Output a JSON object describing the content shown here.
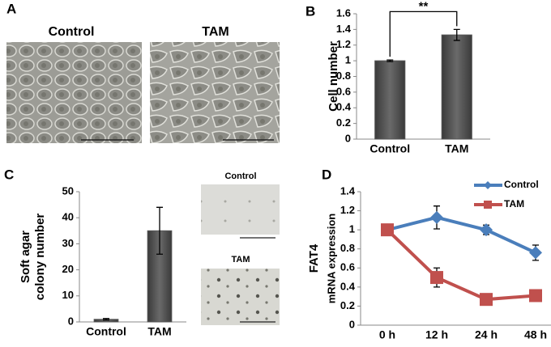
{
  "figure": {
    "panel_labels": [
      "A",
      "B",
      "C",
      "D"
    ],
    "images": [
      {
        "caption": "Control"
      },
      {
        "caption": "TAM"
      },
      {
        "caption": "Control"
      },
      {
        "caption": "TAM"
      }
    ]
  },
  "chart_data": [
    {
      "type": "bar",
      "ylabel": [
        "Cell number"
      ],
      "categories": [
        "Control",
        "TAM"
      ],
      "values": [
        1.0,
        1.33
      ],
      "errors": [
        0.01,
        0.07
      ],
      "color": "#555555",
      "ylim": [
        0,
        1.6
      ],
      "yticks": [
        0,
        0.2,
        0.4,
        0.6,
        0.8,
        1,
        1.2,
        1.4,
        1.6
      ],
      "annotation": "**"
    },
    {
      "type": "bar",
      "ylabel": [
        "Soft agar",
        "colony number"
      ],
      "categories": [
        "Control",
        "TAM"
      ],
      "values": [
        1,
        35
      ],
      "errors": [
        0.3,
        9
      ],
      "color": "#555555",
      "ylim": [
        0,
        50
      ],
      "yticks": [
        0,
        10,
        20,
        30,
        40,
        50
      ]
    },
    {
      "type": "line",
      "ylabel": [
        "FAT4",
        "mRNA expression"
      ],
      "categories": [
        "0 h",
        "12 h",
        "24 h",
        "48 h"
      ],
      "series": [
        {
          "name": "Control",
          "color": "#4a7ebb",
          "marker": "diamond",
          "values": [
            1.0,
            1.13,
            1.0,
            0.76
          ],
          "errors": [
            0.02,
            0.12,
            0.05,
            0.08
          ]
        },
        {
          "name": "TAM",
          "color": "#c0504d",
          "marker": "square",
          "values": [
            1.0,
            0.5,
            0.27,
            0.31
          ],
          "errors": [
            0.02,
            0.1,
            0.03,
            0.05
          ]
        }
      ],
      "ylim": [
        0,
        1.4
      ],
      "yticks": [
        0,
        0.2,
        0.4,
        0.6,
        0.8,
        1,
        1.2,
        1.4
      ]
    }
  ]
}
